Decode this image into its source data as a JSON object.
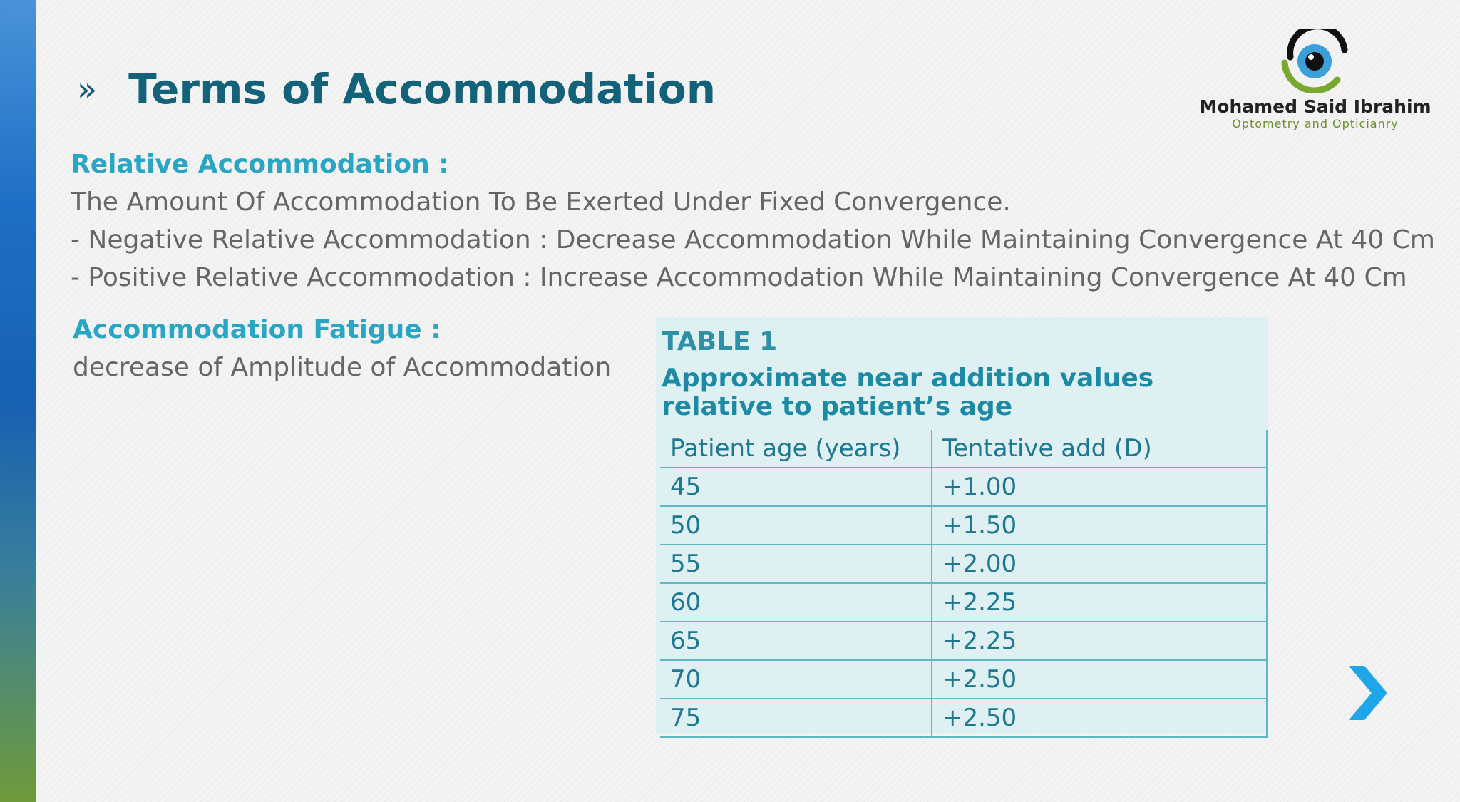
{
  "slide": {
    "title_chevrons": "»",
    "title": "Terms of Accommodation"
  },
  "logo": {
    "name": "Mohamed Said Ibrahim",
    "subtitle": "Optometry and Opticianry"
  },
  "relative_accommodation": {
    "heading": "Relative Accommodation :",
    "lines": [
      "The Amount Of Accommodation To Be Exerted Under Fixed Convergence.",
      "- Negative Relative Accommodation : Decrease Accommodation While Maintaining Convergence At 40 Cm",
      "- Positive Relative Accommodation : Increase Accommodation While Maintaining Convergence At 40 Cm"
    ]
  },
  "accommodation_fatigue": {
    "heading": "Accommodation Fatigue :",
    "text": "decrease of Amplitude of Accommodation"
  },
  "table": {
    "label": "TABLE 1",
    "caption": "Approximate near addition values relative to patient’s age",
    "columns": [
      "Patient age (years)",
      "Tentative add (D)"
    ],
    "rows": [
      [
        "45",
        "+1.00"
      ],
      [
        "50",
        "+1.50"
      ],
      [
        "55",
        "+2.00"
      ],
      [
        "60",
        "+2.25"
      ],
      [
        "65",
        "+2.25"
      ],
      [
        "70",
        "+2.50"
      ],
      [
        "75",
        "+2.50"
      ]
    ]
  },
  "navigation": {
    "next_icon": "chevron-right-icon"
  },
  "colors": {
    "title": "#14627a",
    "heading": "#2aa6c4",
    "body_text": "#666666",
    "table_background": "#dff0f3",
    "table_text": "#1f7891",
    "arrow": "#1ea6e8"
  }
}
